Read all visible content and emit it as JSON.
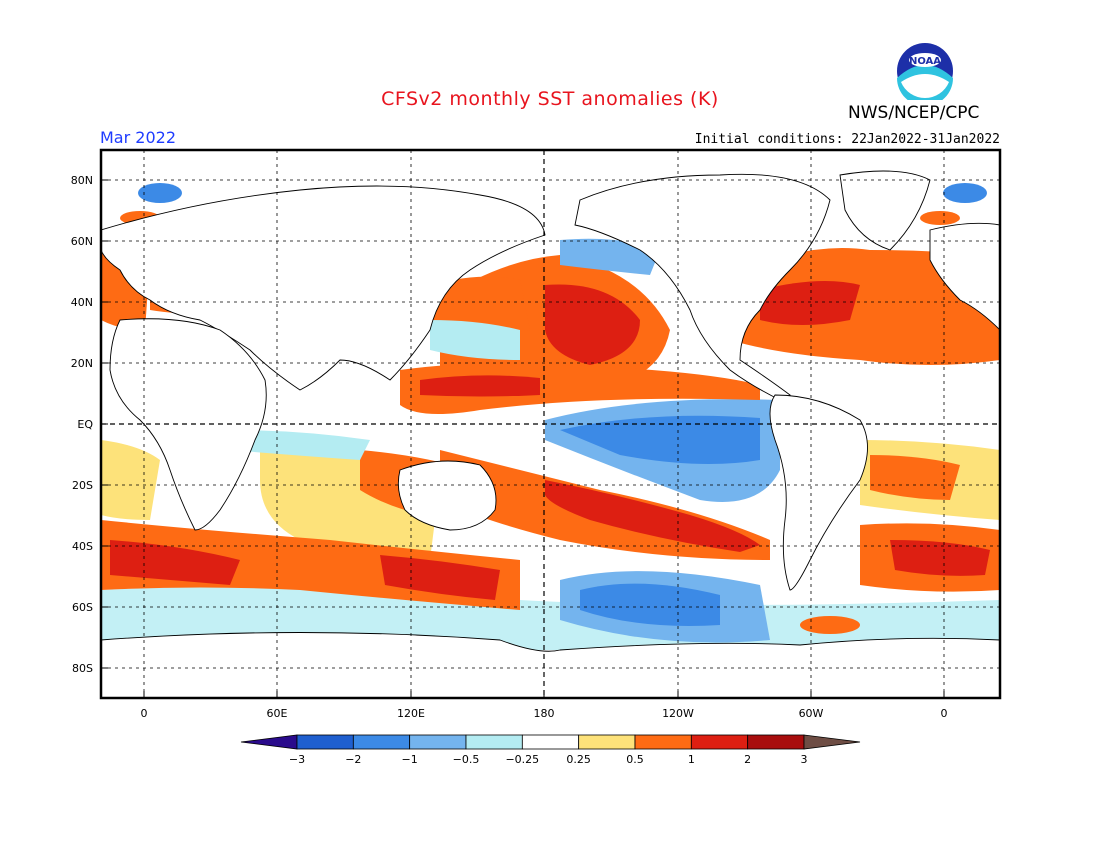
{
  "title": "CFSv2 monthly SST anomalies (K)",
  "agency": "NWS/NCEP/CPC",
  "logo_text": "NOAA",
  "period": "Mar 2022",
  "initial_conditions": "Initial conditions: 22Jan2022-31Jan2022",
  "lat_labels": [
    "80N",
    "60N",
    "40N",
    "20N",
    "EQ",
    "20S",
    "40S",
    "60S",
    "80S"
  ],
  "lon_labels": [
    "0",
    "60E",
    "120E",
    "180",
    "120W",
    "60W",
    "0"
  ],
  "colorbar": {
    "tick_labels": [
      "-3",
      "-2",
      "-1",
      "-0.5",
      "-0.25",
      "0.25",
      "0.5",
      "1",
      "2",
      "3"
    ],
    "colors": [
      "#2a0b8c",
      "#1f5fcf",
      "#3c8ae6",
      "#74b4ee",
      "#b4ecf2",
      "#ffffff",
      "#fde27a",
      "#fe6b14",
      "#dd1f12",
      "#a80d0d",
      "#6e4d44"
    ]
  },
  "colors": {
    "title": "#e8141e",
    "period": "#1e3cff"
  }
}
